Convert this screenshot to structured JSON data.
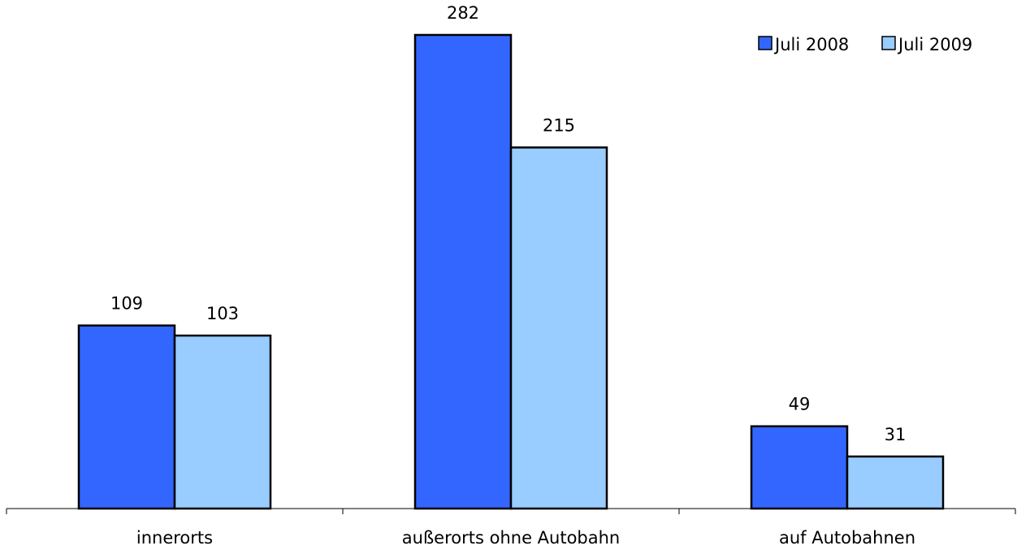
{
  "chart_data": {
    "type": "bar",
    "categories": [
      "innerorts",
      "außerorts ohne Autobahn",
      "auf Autobahnen"
    ],
    "series": [
      {
        "name": "Juli 2008",
        "values": [
          109,
          282,
          49
        ],
        "color": "#3366ff"
      },
      {
        "name": "Juli 2009",
        "values": [
          103,
          215,
          31
        ],
        "color": "#99ccff"
      }
    ],
    "title": "",
    "xlabel": "",
    "ylabel": "",
    "ylim": [
      0,
      300
    ],
    "grid": false,
    "legend_position": "top-right",
    "data_labels": true
  }
}
